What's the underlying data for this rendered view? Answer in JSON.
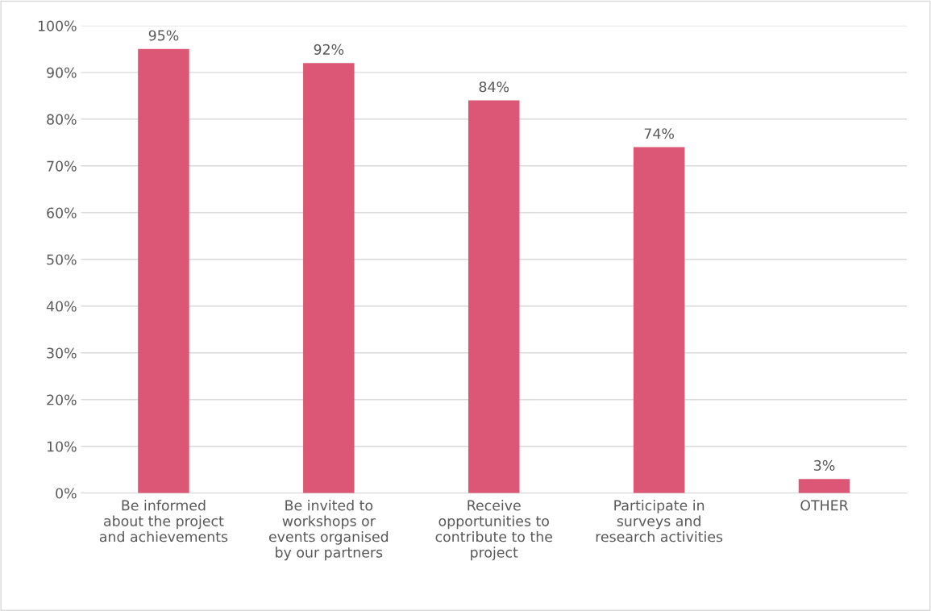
{
  "chart_data": {
    "type": "bar",
    "categories": [
      "Be informed\nabout the project\nand achievements",
      "Be invited to\nworkshops or\nevents organised\nby our partners",
      "Receive\nopportunities to\ncontribute to the\nproject",
      "Participate in\nsurveys and\nresearch activities",
      "OTHER"
    ],
    "values": [
      95,
      92,
      84,
      74,
      3
    ],
    "value_labels": [
      "95%",
      "92%",
      "84%",
      "74%",
      "3%"
    ],
    "color": "#dc5775",
    "ylim": [
      0,
      100
    ],
    "yticks": [
      {
        "value": 0,
        "label": "0%"
      },
      {
        "value": 10,
        "label": "10%"
      },
      {
        "value": 20,
        "label": "20%"
      },
      {
        "value": 30,
        "label": "30%"
      },
      {
        "value": 40,
        "label": "40%"
      },
      {
        "value": 50,
        "label": "50%"
      },
      {
        "value": 60,
        "label": "60%"
      },
      {
        "value": 70,
        "label": "70%"
      },
      {
        "value": 80,
        "label": "80%"
      },
      {
        "value": 90,
        "label": "90%"
      },
      {
        "value": 100,
        "label": "100%"
      }
    ],
    "grid": "y"
  }
}
